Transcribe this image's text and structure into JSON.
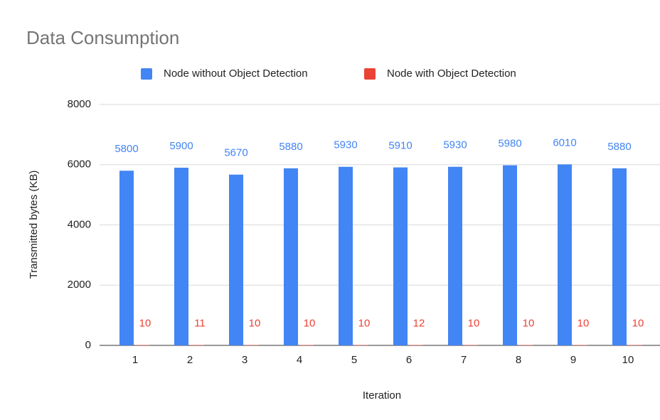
{
  "chart_data": {
    "type": "bar",
    "title": "Data Consumption",
    "x_label": "Iteration",
    "y_label": "Transmitted bytes (KB)",
    "categories": [
      "1",
      "2",
      "3",
      "4",
      "5",
      "6",
      "7",
      "8",
      "9",
      "10"
    ],
    "series": [
      {
        "name": "Node without Object Detection",
        "color": "#4285f4",
        "values": [
          5800,
          5900,
          5670,
          5880,
          5930,
          5910,
          5930,
          5980,
          6010,
          5880
        ]
      },
      {
        "name": "Node with Object Detection",
        "color": "#ea4335",
        "values": [
          10,
          11,
          10,
          10,
          10,
          12,
          10,
          10,
          10,
          10
        ]
      }
    ],
    "ylim": [
      0,
      8000
    ],
    "yticks": [
      0,
      2000,
      4000,
      6000,
      8000
    ],
    "grid": true,
    "legend": "top"
  }
}
